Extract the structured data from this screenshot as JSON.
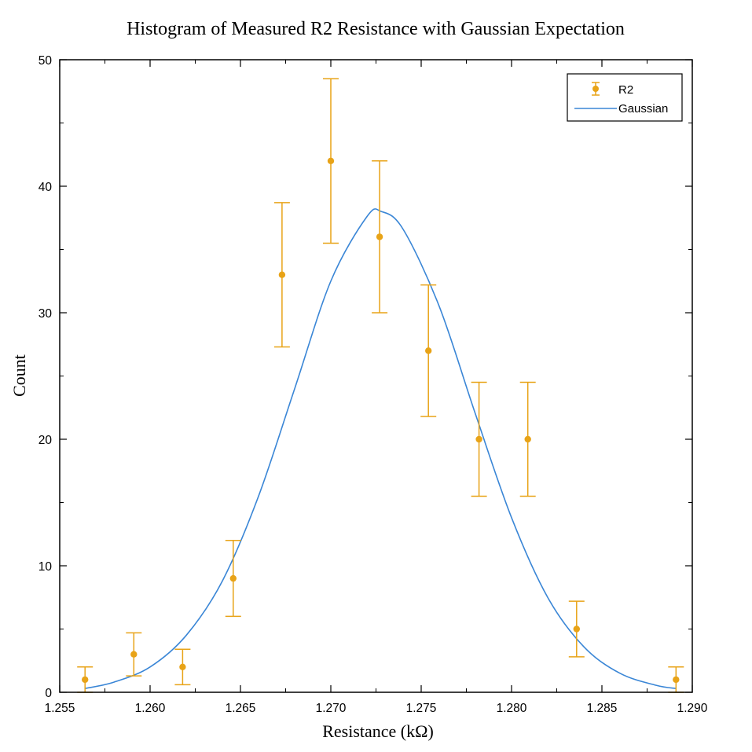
{
  "chart_data": {
    "type": "scatter",
    "title": "Histogram of Measured R2 Resistance with Gaussian Expectation",
    "xlabel": "Resistance (kΩ)",
    "ylabel": "Count",
    "xlim": [
      1.255,
      1.29
    ],
    "ylim": [
      0,
      50
    ],
    "x_ticks": [
      "1.255",
      "1.260",
      "1.265",
      "1.270",
      "1.275",
      "1.280",
      "1.285",
      "1.290"
    ],
    "x_tick_values": [
      1.255,
      1.26,
      1.265,
      1.27,
      1.275,
      1.28,
      1.285,
      1.29
    ],
    "y_ticks": [
      "0",
      "10",
      "20",
      "30",
      "40",
      "50"
    ],
    "y_tick_values": [
      0,
      10,
      20,
      30,
      40,
      50
    ],
    "grid": false,
    "legend_position": "top-right",
    "series": [
      {
        "name": "R2",
        "kind": "errorbar",
        "color": "#e8a317",
        "x": [
          1.2564,
          1.2591,
          1.2618,
          1.2646,
          1.2673,
          1.27,
          1.2727,
          1.2754,
          1.2782,
          1.2809,
          1.2836,
          1.2891
        ],
        "y": [
          1,
          3,
          2,
          9,
          33,
          42,
          36,
          27,
          20,
          20,
          5,
          1
        ],
        "yerr_low": [
          1.0,
          1.7,
          1.4,
          3.0,
          5.7,
          6.5,
          6.0,
          5.2,
          4.5,
          4.5,
          2.2,
          1.0
        ],
        "yerr_high": [
          1.0,
          1.7,
          1.4,
          3.0,
          5.7,
          6.5,
          6.0,
          5.2,
          4.5,
          4.5,
          2.2,
          1.0
        ]
      },
      {
        "name": "Gaussian",
        "kind": "line",
        "color": "#3a86d6",
        "x": [
          1.2564,
          1.258,
          1.26,
          1.262,
          1.264,
          1.266,
          1.268,
          1.27,
          1.272,
          1.2728,
          1.274,
          1.276,
          1.278,
          1.28,
          1.282,
          1.284,
          1.286,
          1.288,
          1.2891
        ],
        "y": [
          0.3,
          0.8,
          2.0,
          4.5,
          8.8,
          15.5,
          24.0,
          32.5,
          37.6,
          38.0,
          36.6,
          30.5,
          22.0,
          13.8,
          7.5,
          3.6,
          1.5,
          0.55,
          0.3
        ]
      }
    ]
  }
}
